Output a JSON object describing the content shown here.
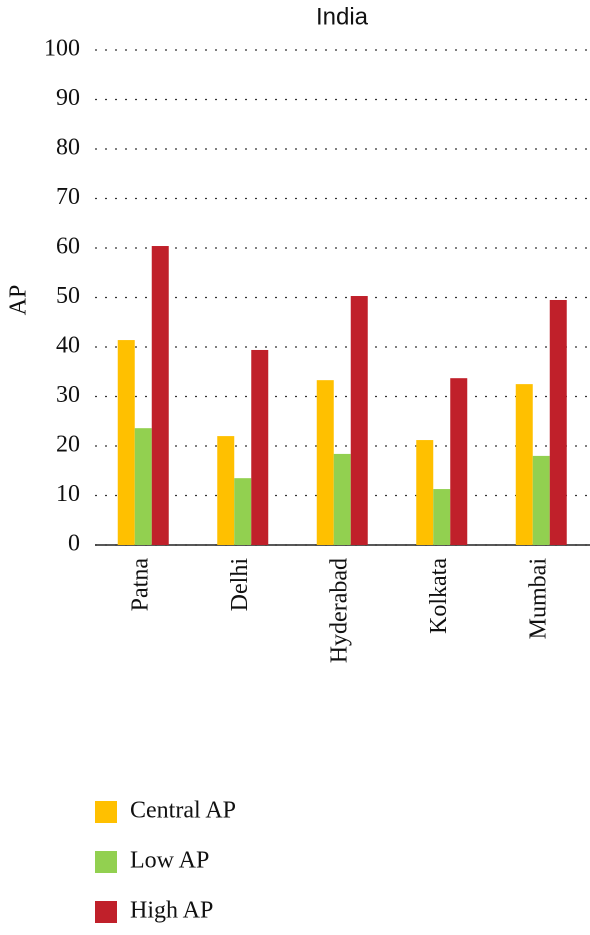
{
  "chart_data": {
    "type": "bar",
    "title": "India",
    "y_label": "AP",
    "categories": [
      "Patna",
      "Delhi",
      "Hyderabad",
      "Kolkata",
      "Mumbai"
    ],
    "series": [
      {
        "name": "Central AP",
        "color": "#ffc000",
        "values": [
          41.4,
          22.0,
          33.3,
          21.2,
          32.5
        ]
      },
      {
        "name": "Low AP",
        "color": "#92d050",
        "values": [
          23.6,
          13.5,
          18.4,
          11.3,
          18.0
        ]
      },
      {
        "name": "High AP",
        "color": "#c0202a",
        "values": [
          60.4,
          39.4,
          50.3,
          33.7,
          49.5
        ]
      }
    ],
    "ylim": [
      0,
      100
    ],
    "yticks": [
      0,
      10,
      20,
      30,
      40,
      50,
      60,
      70,
      80,
      90,
      100
    ],
    "grid": true
  }
}
